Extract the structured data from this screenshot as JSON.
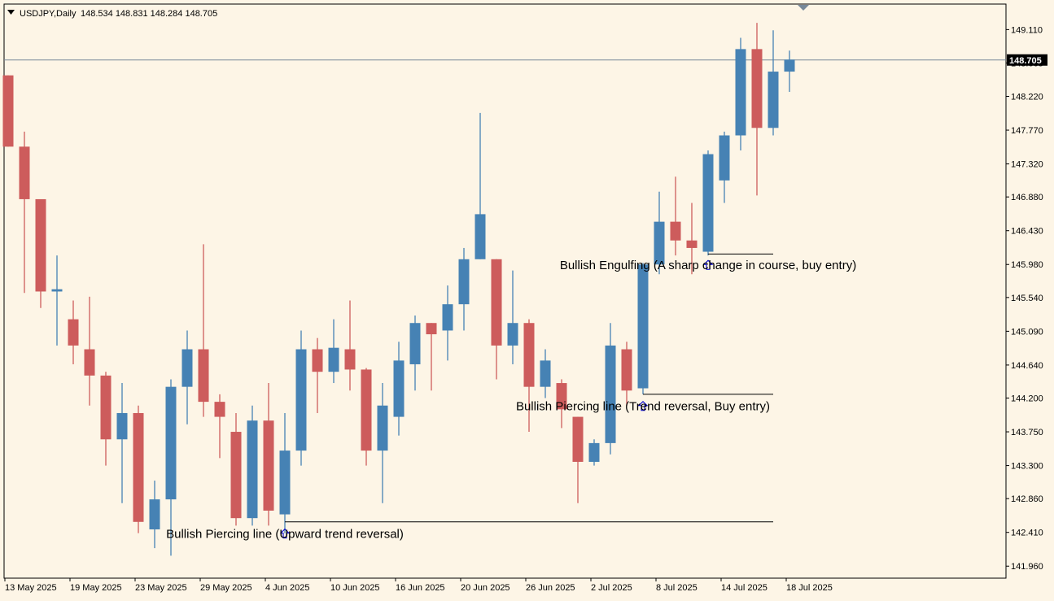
{
  "header": {
    "symbol": "USDJPY,Daily",
    "ohlc": "148.534 148.831 148.284 148.705"
  },
  "colors": {
    "background": "#fdf5e6",
    "bullish": "#4682b4",
    "bearish": "#cd5c5c",
    "text": "#000000",
    "marker": "#0000cd",
    "price_line": "#778899"
  },
  "chart_data": {
    "type": "candlestick",
    "symbol": "USDJPY",
    "timeframe": "Daily",
    "ylim": [
      141.8,
      149.45
    ],
    "y_ticks": [
      "149.110",
      "148.665",
      "148.220",
      "147.770",
      "147.320",
      "146.880",
      "146.430",
      "145.980",
      "145.540",
      "145.090",
      "144.640",
      "144.200",
      "143.750",
      "143.300",
      "142.860",
      "142.410",
      "141.960"
    ],
    "x_tick_labels": [
      "13 May 2025",
      "19 May 2025",
      "23 May 2025",
      "29 May 2025",
      "4 Jun 2025",
      "10 Jun 2025",
      "16 Jun 2025",
      "20 Jun 2025",
      "26 Jun 2025",
      "2 Jul 2025",
      "8 Jul 2025",
      "14 Jul 2025",
      "18 Jul 2025"
    ],
    "current_price": "148.705",
    "candles": [
      {
        "o": 148.5,
        "h": 148.5,
        "l": 147.55,
        "c": 147.55
      },
      {
        "o": 147.55,
        "h": 147.75,
        "l": 145.6,
        "c": 146.85
      },
      {
        "o": 146.85,
        "h": 146.85,
        "l": 145.4,
        "c": 145.62
      },
      {
        "o": 145.62,
        "h": 146.1,
        "l": 144.9,
        "c": 145.65
      },
      {
        "o": 145.25,
        "h": 145.5,
        "l": 144.65,
        "c": 144.9
      },
      {
        "o": 144.85,
        "h": 145.55,
        "l": 144.1,
        "c": 144.5
      },
      {
        "o": 144.5,
        "h": 144.55,
        "l": 143.3,
        "c": 143.65
      },
      {
        "o": 143.65,
        "h": 144.4,
        "l": 142.8,
        "c": 144.0
      },
      {
        "o": 144.0,
        "h": 144.1,
        "l": 142.4,
        "c": 142.55
      },
      {
        "o": 142.45,
        "h": 143.1,
        "l": 142.2,
        "c": 142.85
      },
      {
        "o": 142.85,
        "h": 144.45,
        "l": 142.1,
        "c": 144.35
      },
      {
        "o": 144.35,
        "h": 145.1,
        "l": 143.85,
        "c": 144.85
      },
      {
        "o": 144.85,
        "h": 146.25,
        "l": 143.95,
        "c": 144.15
      },
      {
        "o": 144.15,
        "h": 144.25,
        "l": 143.4,
        "c": 143.95
      },
      {
        "o": 143.75,
        "h": 144.0,
        "l": 142.5,
        "c": 142.6
      },
      {
        "o": 142.6,
        "h": 144.1,
        "l": 142.5,
        "c": 143.9
      },
      {
        "o": 143.9,
        "h": 144.4,
        "l": 142.5,
        "c": 142.7
      },
      {
        "o": 142.65,
        "h": 144.0,
        "l": 142.4,
        "c": 143.5
      },
      {
        "o": 143.5,
        "h": 145.1,
        "l": 143.3,
        "c": 144.85
      },
      {
        "o": 144.85,
        "h": 145.0,
        "l": 144.0,
        "c": 144.55
      },
      {
        "o": 144.55,
        "h": 145.25,
        "l": 144.4,
        "c": 144.87
      },
      {
        "o": 144.85,
        "h": 145.5,
        "l": 144.3,
        "c": 144.58
      },
      {
        "o": 144.58,
        "h": 144.6,
        "l": 143.3,
        "c": 143.5
      },
      {
        "o": 143.5,
        "h": 144.4,
        "l": 142.8,
        "c": 144.1
      },
      {
        "o": 143.95,
        "h": 144.95,
        "l": 143.7,
        "c": 144.7
      },
      {
        "o": 144.65,
        "h": 145.3,
        "l": 144.3,
        "c": 145.2
      },
      {
        "o": 145.2,
        "h": 145.2,
        "l": 144.3,
        "c": 145.05
      },
      {
        "o": 145.1,
        "h": 145.7,
        "l": 144.7,
        "c": 145.45
      },
      {
        "o": 145.45,
        "h": 146.2,
        "l": 145.1,
        "c": 146.05
      },
      {
        "o": 146.05,
        "h": 148.0,
        "l": 146.05,
        "c": 146.65
      },
      {
        "o": 146.05,
        "h": 146.05,
        "l": 144.45,
        "c": 144.9
      },
      {
        "o": 144.9,
        "h": 145.9,
        "l": 144.65,
        "c": 145.2
      },
      {
        "o": 145.2,
        "h": 145.25,
        "l": 143.75,
        "c": 144.35
      },
      {
        "o": 144.35,
        "h": 144.85,
        "l": 144.2,
        "c": 144.7
      },
      {
        "o": 144.4,
        "h": 144.45,
        "l": 143.8,
        "c": 144.05
      },
      {
        "o": 143.95,
        "h": 143.95,
        "l": 142.8,
        "c": 143.35
      },
      {
        "o": 143.35,
        "h": 143.65,
        "l": 143.3,
        "c": 143.6
      },
      {
        "o": 143.6,
        "h": 145.2,
        "l": 143.45,
        "c": 144.9
      },
      {
        "o": 144.85,
        "h": 144.95,
        "l": 144.1,
        "c": 144.3
      },
      {
        "o": 144.33,
        "h": 146.0,
        "l": 144.25,
        "c": 145.98
      },
      {
        "o": 145.98,
        "h": 146.95,
        "l": 145.85,
        "c": 146.55
      },
      {
        "o": 146.55,
        "h": 147.15,
        "l": 146.1,
        "c": 146.3
      },
      {
        "o": 146.3,
        "h": 146.8,
        "l": 145.85,
        "c": 146.2
      },
      {
        "o": 146.15,
        "h": 147.5,
        "l": 146.1,
        "c": 147.45
      },
      {
        "o": 147.1,
        "h": 147.75,
        "l": 146.8,
        "c": 147.7
      },
      {
        "o": 147.7,
        "h": 149.0,
        "l": 147.5,
        "c": 148.85
      },
      {
        "o": 148.85,
        "h": 149.2,
        "l": 146.9,
        "c": 147.8
      },
      {
        "o": 147.8,
        "h": 149.1,
        "l": 147.7,
        "c": 148.55
      },
      {
        "o": 148.55,
        "h": 148.83,
        "l": 148.28,
        "c": 148.71
      }
    ],
    "annotations": [
      {
        "text": "Bullish Piercing line (Upward trend reversal)",
        "candle": 17,
        "price": 142.4,
        "line_from": 17,
        "line_to": 47,
        "line_price": 142.55
      },
      {
        "text": "Bullish Piercing line (Trend reversal, Buy entry)",
        "candle": 39,
        "price": 144.1,
        "line_from": 39,
        "line_to": 47,
        "line_price": 144.25
      },
      {
        "text": "Bullish Engulfing (A sharp change in course, buy entry)",
        "candle": 43,
        "price": 145.98,
        "line_from": 43,
        "line_to": 47,
        "line_price": 146.12
      }
    ]
  }
}
